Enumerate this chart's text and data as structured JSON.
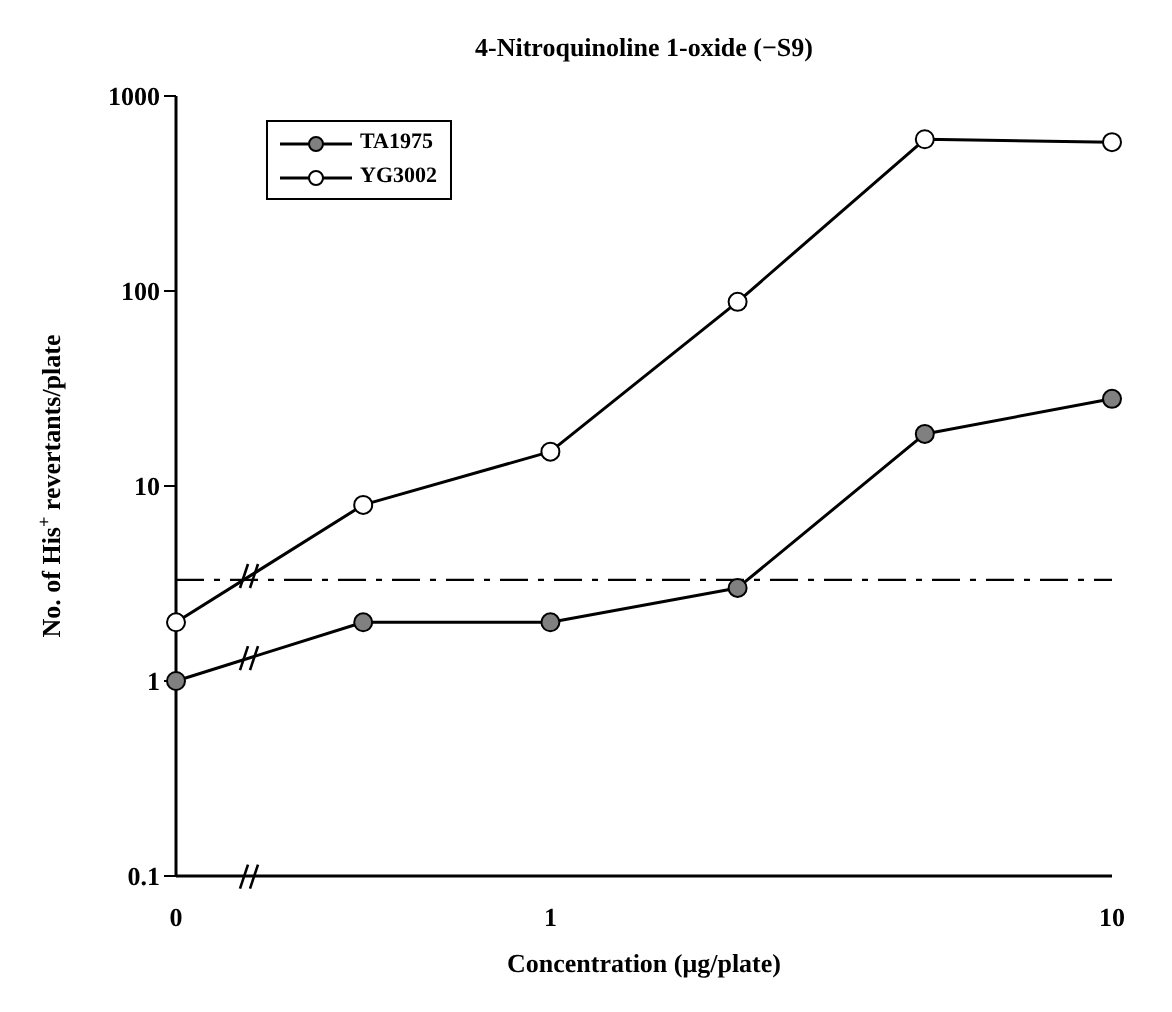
{
  "chart_data": {
    "type": "line",
    "title": "4-Nitroquinoline 1-oxide (−S9)",
    "xlabel": "Concentration (μg/plate)",
    "ylabel": "No. of His$^{+}$ revertants/plate",
    "categories": [
      "0",
      null,
      "1",
      null,
      null,
      "10"
    ],
    "series": [
      {
        "name": "TA1975",
        "color": "#808080",
        "values": [
          1,
          2,
          2,
          3,
          18.5,
          28
        ]
      },
      {
        "name": "YG3002",
        "color": "#ffffff",
        "values": [
          2,
          8,
          15,
          88,
          600,
          580
        ]
      }
    ],
    "log": "y",
    "ylim": [
      0.1,
      1000
    ],
    "yticks": [
      0.1,
      1,
      10,
      100,
      1000
    ],
    "ref_lines": [
      {
        "axis": "y",
        "value": 3.3,
        "line_style": "dashed"
      }
    ],
    "grid": false,
    "legend": "top left",
    "marker": "circle",
    "line_style": "solid"
  }
}
